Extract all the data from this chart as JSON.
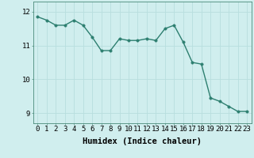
{
  "x": [
    0,
    1,
    2,
    3,
    4,
    5,
    6,
    7,
    8,
    9,
    10,
    11,
    12,
    13,
    14,
    15,
    16,
    17,
    18,
    19,
    20,
    21,
    22,
    23
  ],
  "y": [
    11.85,
    11.75,
    11.6,
    11.6,
    11.75,
    11.6,
    11.25,
    10.85,
    10.85,
    11.2,
    11.15,
    11.15,
    11.2,
    11.15,
    11.5,
    11.6,
    11.1,
    10.5,
    10.45,
    9.45,
    9.35,
    9.2,
    9.05,
    9.05
  ],
  "xlabel": "Humidex (Indice chaleur)",
  "ylim": [
    8.7,
    12.3
  ],
  "xlim": [
    -0.5,
    23.5
  ],
  "yticks": [
    9,
    10,
    11,
    12
  ],
  "xticks": [
    0,
    1,
    2,
    3,
    4,
    5,
    6,
    7,
    8,
    9,
    10,
    11,
    12,
    13,
    14,
    15,
    16,
    17,
    18,
    19,
    20,
    21,
    22,
    23
  ],
  "line_color": "#2d7f70",
  "marker_color": "#2d7f70",
  "bg_color": "#d0eeee",
  "grid_color": "#b8dede",
  "xlabel_fontsize": 7.5,
  "tick_fontsize": 6.5,
  "line_width": 1.0,
  "marker_size": 2.5
}
